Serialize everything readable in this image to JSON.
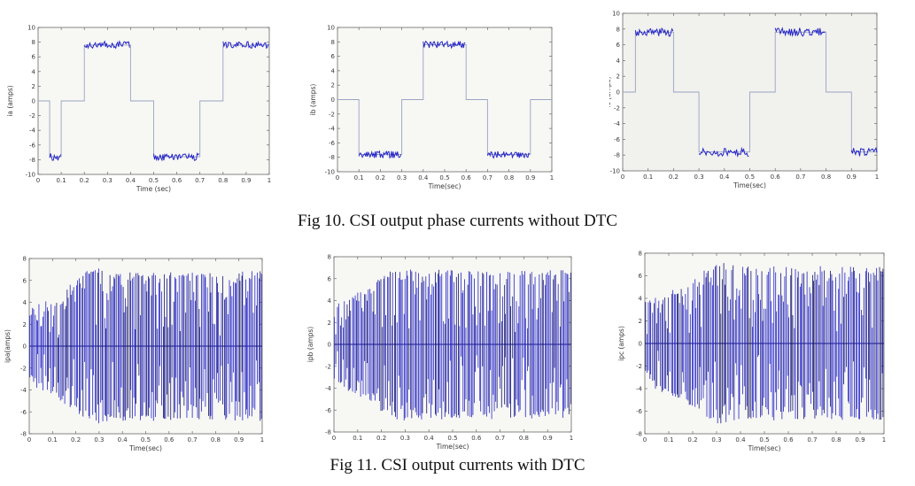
{
  "page": {
    "background": "#ffffff"
  },
  "figures": [
    {
      "caption": "Fig 10. CSI output phase currents without DTC"
    },
    {
      "caption": "Fig 11. CSI output currents with  DTC"
    }
  ],
  "chart_data": [
    {
      "id": "ia-without-dtc",
      "type": "line",
      "waveform": "csi-square-120deg",
      "title": "",
      "xlabel": "Time (sec)",
      "ylabel": "ia (amps)",
      "x_range": [
        0,
        1
      ],
      "y_range": [
        -10,
        10
      ],
      "x_tick_values": [
        0,
        0.1,
        0.2,
        0.3,
        0.4,
        0.5,
        0.6,
        0.7,
        0.8,
        0.9,
        1
      ],
      "x_tick_labels": [
        "0",
        "0.1",
        "0.2",
        "0.3",
        "0.4",
        "0.5",
        "0.6",
        "0.7",
        "0.8",
        "0.9",
        "1"
      ],
      "y_tick_values": [
        -10,
        -8,
        -6,
        -4,
        -2,
        0,
        2,
        4,
        6,
        8,
        10
      ],
      "y_tick_labels": [
        "-10",
        "-8",
        "-6",
        "-4",
        "-2",
        "0",
        "2",
        "4",
        "6",
        "8",
        "10"
      ],
      "segments": [
        [
          0,
          0.05,
          0
        ],
        [
          0.05,
          0.1,
          -8
        ],
        [
          0.1,
          0.2,
          0
        ],
        [
          0.2,
          0.4,
          8
        ],
        [
          0.4,
          0.5,
          0
        ],
        [
          0.5,
          0.7,
          -8
        ],
        [
          0.7,
          0.8,
          0
        ],
        [
          0.8,
          1,
          8
        ]
      ],
      "ripple": {
        "inner": 7.15,
        "outer": 8.1
      },
      "seed": 1,
      "grid": false,
      "legend": null,
      "colors": {
        "line": "#2626c8",
        "dark": "#14147a",
        "skeleton": "#9aa3c2",
        "bg": "#f7f7f4",
        "axis": "#6a6a6a"
      }
    },
    {
      "id": "ib-without-dtc",
      "type": "line",
      "waveform": "csi-square-120deg",
      "title": "",
      "xlabel": "Time(sec)",
      "ylabel": "ib (amps)",
      "x_range": [
        0,
        1
      ],
      "y_range": [
        -10,
        10
      ],
      "x_tick_values": [
        0,
        0.1,
        0.2,
        0.3,
        0.4,
        0.5,
        0.6,
        0.7,
        0.8,
        0.9,
        1
      ],
      "x_tick_labels": [
        "0",
        "0.1",
        "0.2",
        "0.3",
        "0.4",
        "0.5",
        "0.6",
        "0.7",
        "0.8",
        "0.9",
        "1"
      ],
      "y_tick_values": [
        -10,
        -8,
        -6,
        -4,
        -2,
        0,
        2,
        4,
        6,
        8,
        10
      ],
      "y_tick_labels": [
        "-10",
        "-8",
        "-6",
        "-4",
        "-2",
        "0",
        "2",
        "4",
        "6",
        "8",
        "10"
      ],
      "segments": [
        [
          0,
          0.1,
          0
        ],
        [
          0.1,
          0.3,
          -8
        ],
        [
          0.3,
          0.4,
          0
        ],
        [
          0.4,
          0.6,
          8
        ],
        [
          0.6,
          0.7,
          0
        ],
        [
          0.7,
          0.9,
          -8
        ],
        [
          0.9,
          1,
          0
        ]
      ],
      "ripple": {
        "inner": 7.15,
        "outer": 8.1
      },
      "seed": 2,
      "grid": false,
      "legend": null,
      "colors": {
        "line": "#2626c8",
        "dark": "#14147a",
        "skeleton": "#9aa3c2",
        "bg": "#f7f7f4",
        "axis": "#6a6a6a"
      }
    },
    {
      "id": "ic-without-dtc",
      "type": "line",
      "waveform": "csi-square-120deg",
      "title": "",
      "xlabel": "Time(sec)",
      "ylabel": "ic (amps)",
      "x_range": [
        0,
        1
      ],
      "y_range": [
        -10,
        10
      ],
      "x_tick_values": [
        0,
        0.1,
        0.2,
        0.3,
        0.4,
        0.5,
        0.6,
        0.7,
        0.8,
        0.9,
        1
      ],
      "x_tick_labels": [
        "0",
        "0.1",
        "0.2",
        "0.3",
        "0.4",
        "0.5",
        "0.6",
        "0.7",
        "0.8",
        "0.9",
        "1"
      ],
      "y_tick_values": [
        -10,
        -8,
        -6,
        -4,
        -2,
        0,
        2,
        4,
        6,
        8,
        10
      ],
      "y_tick_labels": [
        "-10",
        "-8",
        "-6",
        "-4",
        "-2",
        "0",
        "2",
        "4",
        "6",
        "8",
        "10"
      ],
      "segments": [
        [
          0,
          0.05,
          0
        ],
        [
          0.05,
          0.2,
          8
        ],
        [
          0.2,
          0.3,
          0
        ],
        [
          0.3,
          0.5,
          -8
        ],
        [
          0.5,
          0.6,
          0
        ],
        [
          0.6,
          0.8,
          8
        ],
        [
          0.8,
          0.9,
          0
        ],
        [
          0.9,
          1,
          -8
        ]
      ],
      "ripple": {
        "inner": 7.1,
        "outer": 8.15
      },
      "seed": 3,
      "grid": false,
      "legend": null,
      "colors": {
        "line": "#2626c8",
        "dark": "#14147a",
        "skeleton": "#9aa3c2",
        "bg": "#f1f1ee",
        "axis": "#6a6a6a"
      }
    },
    {
      "id": "ipa-with-dtc",
      "type": "line",
      "waveform": "pwm-chopped",
      "title": "",
      "xlabel": "Time(sec)",
      "ylabel": "ipa(amps)",
      "x_range": [
        0,
        1
      ],
      "y_range": [
        -8,
        8
      ],
      "x_tick_values": [
        0,
        0.1,
        0.2,
        0.3,
        0.4,
        0.5,
        0.6,
        0.7,
        0.8,
        0.9,
        1
      ],
      "x_tick_labels": [
        "0",
        "0.1",
        "0.2",
        "0.3",
        "0.4",
        "0.5",
        "0.6",
        "0.7",
        "0.8",
        "0.9",
        "1"
      ],
      "y_tick_values": [
        -8,
        -6,
        -4,
        -2,
        0,
        2,
        4,
        6,
        8
      ],
      "y_tick_labels": [
        "-8",
        "-6",
        "-4",
        "-2",
        "0",
        "2",
        "4",
        "6",
        "8"
      ],
      "envelope": {
        "initial": 3.4,
        "steady": 6.6,
        "rise_time": 0.3,
        "peak_bump": 0.6,
        "bump_time": 0.26,
        "bump_width": 0.06
      },
      "switching_lines_per_sec": 175,
      "seed": 11,
      "grid": false,
      "legend": null,
      "colors": {
        "line": "#2424c6",
        "dark": "#12126e",
        "skeleton": "#9aa3c2",
        "bg": "#f7f7f4",
        "axis": "#6a6a6a"
      }
    },
    {
      "id": "ipb-with-dtc",
      "type": "line",
      "waveform": "pwm-chopped",
      "title": "",
      "xlabel": "Time(sec)",
      "ylabel": "ipb (amps)",
      "x_range": [
        0,
        1
      ],
      "y_range": [
        -8,
        8
      ],
      "x_tick_values": [
        0,
        0.1,
        0.2,
        0.3,
        0.4,
        0.5,
        0.6,
        0.7,
        0.8,
        0.9,
        1
      ],
      "x_tick_labels": [
        "0",
        "0.1",
        "0.2",
        "0.3",
        "0.4",
        "0.5",
        "0.6",
        "0.7",
        "0.8",
        "0.9",
        "1"
      ],
      "y_tick_values": [
        -8,
        -6,
        -4,
        -2,
        0,
        2,
        4,
        6,
        8
      ],
      "y_tick_labels": [
        "-8",
        "-6",
        "-4",
        "-2",
        "0",
        "2",
        "4",
        "6",
        "8"
      ],
      "envelope": {
        "initial": 3.4,
        "steady": 6.6,
        "rise_time": 0.3,
        "peak_bump": 0.6,
        "bump_time": 0.24,
        "bump_width": 0.06
      },
      "switching_lines_per_sec": 175,
      "seed": 23,
      "grid": false,
      "legend": null,
      "colors": {
        "line": "#2424c6",
        "dark": "#12126e",
        "skeleton": "#9aa3c2",
        "bg": "#f7f7f4",
        "axis": "#6a6a6a"
      }
    },
    {
      "id": "ipc-with-dtc",
      "type": "line",
      "waveform": "pwm-chopped",
      "title": "",
      "xlabel": "Time(sec)",
      "ylabel": "ipc (amps)",
      "x_range": [
        0,
        1
      ],
      "y_range": [
        -8,
        8
      ],
      "x_tick_values": [
        0,
        0.1,
        0.2,
        0.3,
        0.4,
        0.5,
        0.6,
        0.7,
        0.8,
        0.9,
        1
      ],
      "x_tick_labels": [
        "0",
        "0.1",
        "0.2",
        "0.3",
        "0.4",
        "0.5",
        "0.6",
        "0.7",
        "0.8",
        "0.9",
        "1"
      ],
      "y_tick_values": [
        -8,
        -6,
        -4,
        -2,
        0,
        2,
        4,
        6,
        8
      ],
      "y_tick_labels": [
        "-8",
        "-6",
        "-4",
        "-2",
        "0",
        "2",
        "4",
        "6",
        "8"
      ],
      "envelope": {
        "initial": 3.4,
        "steady": 6.6,
        "rise_time": 0.32,
        "peak_bump": 0.7,
        "bump_time": 0.3,
        "bump_width": 0.06
      },
      "switching_lines_per_sec": 175,
      "seed": 37,
      "grid": false,
      "legend": null,
      "colors": {
        "line": "#2424c6",
        "dark": "#12126e",
        "skeleton": "#9aa3c2",
        "bg": "#f7f7f4",
        "axis": "#6a6a6a"
      }
    }
  ]
}
